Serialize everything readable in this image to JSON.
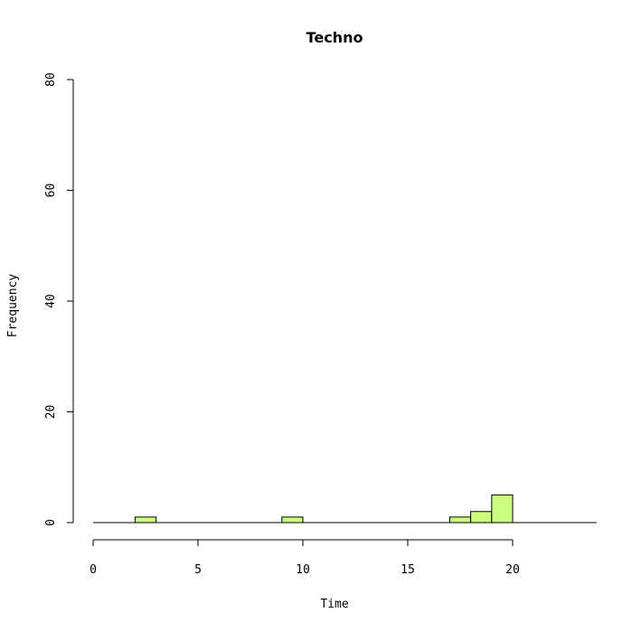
{
  "chart_data": {
    "type": "bar",
    "title": "Techno",
    "xlabel": "Time",
    "ylabel": "Frequency",
    "xlim": [
      0,
      24
    ],
    "ylim": [
      0,
      80
    ],
    "x_ticks": [
      0,
      5,
      10,
      15,
      20
    ],
    "y_ticks": [
      0,
      20,
      40,
      60,
      80
    ],
    "bin_width": 1,
    "bins": [
      {
        "start": 2,
        "end": 3,
        "count": 1
      },
      {
        "start": 9,
        "end": 10,
        "count": 1
      },
      {
        "start": 17,
        "end": 18,
        "count": 1
      },
      {
        "start": 18,
        "end": 19,
        "count": 2
      },
      {
        "start": 19,
        "end": 20,
        "count": 5
      }
    ],
    "bar_color": "#ccff80",
    "grid": false
  }
}
